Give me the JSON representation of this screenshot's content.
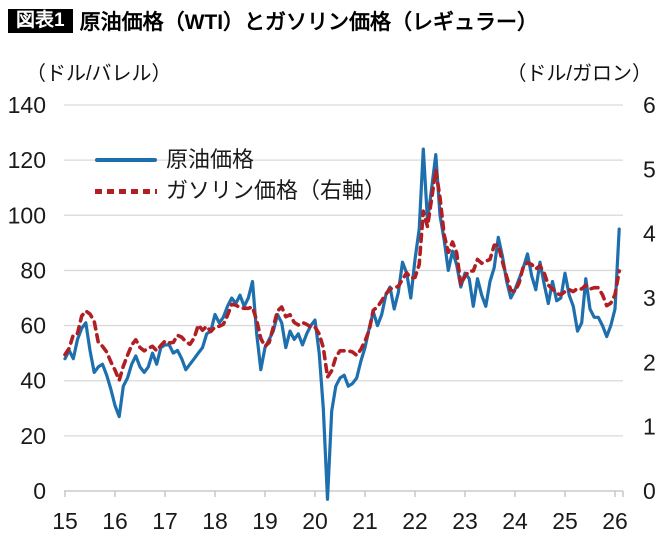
{
  "header": {
    "badge": "図表1",
    "title": "原油価格（WTI）とガソリン価格（レギュラー）"
  },
  "axes": {
    "left_unit": "（ドル/バレル）",
    "right_unit": "（ドル/ガロン）"
  },
  "legend": {
    "items": [
      {
        "label": "原油価格"
      },
      {
        "label": "ガソリン価格（右軸）"
      }
    ]
  },
  "chart_data": {
    "type": "line",
    "title": "原油価格（WTI）とガソリン価格（レギュラー）",
    "x_start": "2015-01",
    "x_interval": "monthly",
    "x_tick_labels": [
      "15",
      "16",
      "17",
      "18",
      "19",
      "20",
      "21",
      "22",
      "23",
      "24",
      "25",
      "26"
    ],
    "left_axis": {
      "label": "（ドル/バレル）",
      "range": [
        0,
        140
      ],
      "ticks": [
        0,
        20,
        40,
        60,
        80,
        100,
        120,
        140
      ]
    },
    "right_axis": {
      "label": "（ドル/ガロン）",
      "range": [
        0,
        6
      ],
      "ticks": [
        0,
        1,
        2,
        3,
        4,
        5,
        6
      ]
    },
    "grid": "horizontal",
    "legend_position": "top-left-inside",
    "series": [
      {
        "name": "原油価格",
        "axis": "left",
        "color": "#1E6FAE",
        "line_style": "solid",
        "values": [
          48,
          51,
          48,
          55,
          59,
          61,
          51,
          43,
          45,
          46,
          42,
          37,
          31,
          27,
          38,
          41,
          46,
          49,
          45,
          43,
          45,
          50,
          46,
          52,
          53,
          53,
          50,
          51,
          48,
          44,
          46,
          48,
          50,
          52,
          57,
          58,
          64,
          61,
          63,
          67,
          70,
          68,
          71,
          67,
          70,
          76,
          57,
          44,
          52,
          55,
          58,
          64,
          61,
          52,
          58,
          55,
          57,
          53,
          57,
          60,
          62,
          50,
          30,
          -3,
          29,
          38,
          41,
          42,
          38,
          39,
          41,
          47,
          52,
          59,
          65,
          60,
          64,
          71,
          74,
          66,
          72,
          83,
          79,
          70,
          84,
          95,
          124,
          98,
          110,
          122,
          100,
          91,
          80,
          87,
          82,
          74,
          79,
          77,
          67,
          77,
          71,
          67,
          76,
          81,
          92,
          85,
          76,
          70,
          73,
          77,
          81,
          86,
          78,
          73,
          83,
          75,
          68,
          76,
          69,
          70,
          79,
          71,
          67,
          58,
          61,
          77,
          66,
          63,
          63,
          60,
          56,
          60,
          66,
          95
        ]
      },
      {
        "name": "ガソリン価格（右軸）",
        "axis": "right",
        "color": "#B01F24",
        "line_style": "dashed",
        "values": [
          2.12,
          2.22,
          2.43,
          2.45,
          2.72,
          2.8,
          2.75,
          2.64,
          2.31,
          2.25,
          2.16,
          2.01,
          1.88,
          1.72,
          1.94,
          2.11,
          2.27,
          2.35,
          2.23,
          2.18,
          2.22,
          2.25,
          2.18,
          2.26,
          2.33,
          2.3,
          2.31,
          2.42,
          2.39,
          2.32,
          2.28,
          2.38,
          2.58,
          2.5,
          2.56,
          2.48,
          2.55,
          2.56,
          2.59,
          2.73,
          2.9,
          2.89,
          2.85,
          2.84,
          2.84,
          2.86,
          2.65,
          2.37,
          2.25,
          2.31,
          2.55,
          2.8,
          2.86,
          2.71,
          2.74,
          2.62,
          2.58,
          2.62,
          2.59,
          2.55,
          2.55,
          2.44,
          2.23,
          1.77,
          1.87,
          2.08,
          2.18,
          2.18,
          2.18,
          2.16,
          2.11,
          2.2,
          2.33,
          2.5,
          2.81,
          2.86,
          2.96,
          3.06,
          3.14,
          3.16,
          3.18,
          3.29,
          3.39,
          3.31,
          3.32,
          3.52,
          4.35,
          4.11,
          4.55,
          4.99,
          4.56,
          3.98,
          3.71,
          3.87,
          3.7,
          3.21,
          3.34,
          3.42,
          3.42,
          3.6,
          3.54,
          3.57,
          3.6,
          3.82,
          3.82,
          3.56,
          3.33,
          3.12,
          3.1,
          3.24,
          3.49,
          3.55,
          3.52,
          3.45,
          3.5,
          3.39,
          3.2,
          3.14,
          3.07,
          3.05,
          3.1,
          3.13,
          3.1,
          3.15,
          3.14,
          3.2,
          3.14,
          3.16,
          3.16,
          3.05,
          2.88,
          2.92,
          3.05,
          3.42
        ]
      }
    ]
  },
  "colors": {
    "crude": "#1E6FAE",
    "gasoline": "#B01F24",
    "grid": "#D9D9D9",
    "axis": "#BFBFBF",
    "text": "#1A1A1A",
    "badge_bg": "#000000",
    "badge_text": "#FFFFFF"
  }
}
